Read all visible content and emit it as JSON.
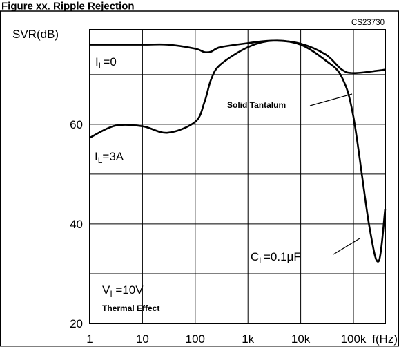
{
  "figure_caption": "Figure xx. Ripple Rejection",
  "chart_data": {
    "type": "line",
    "code": "CS23730",
    "ylabel": "SVR(dB)",
    "xlabel": "f(Hz)",
    "x_scale": "log",
    "xlim": [
      1,
      400000
    ],
    "ylim": [
      20,
      79
    ],
    "grid": true,
    "x_ticks": [
      {
        "value": 1,
        "label": "1"
      },
      {
        "value": 10,
        "label": "10"
      },
      {
        "value": 100,
        "label": "100"
      },
      {
        "value": 1000,
        "label": "1k"
      },
      {
        "value": 10000,
        "label": "10k"
      },
      {
        "value": 100000,
        "label": "100k"
      }
    ],
    "y_ticks": [
      {
        "value": 20,
        "label": "20"
      },
      {
        "value": 40,
        "label": "40"
      },
      {
        "value": 60,
        "label": "60"
      }
    ],
    "series": [
      {
        "name": "IL=0",
        "x": [
          1,
          10,
          30,
          100,
          150,
          200,
          300,
          1000,
          3000,
          10000,
          30000,
          60000,
          100000,
          300000,
          400000
        ],
        "y": [
          76,
          76,
          76,
          75.2,
          74.5,
          74.6,
          75.5,
          76.3,
          76.8,
          76.2,
          74,
          71,
          70.3,
          70.8,
          71
        ]
      },
      {
        "name": "IL=3A",
        "x": [
          1,
          3,
          10,
          30,
          100,
          150,
          200,
          300,
          1000,
          3000,
          10000,
          30000,
          60000,
          100000,
          200000,
          300000,
          400000
        ],
        "y": [
          57.3,
          59.7,
          59.6,
          58.3,
          60.5,
          64.5,
          69,
          72,
          75.5,
          76.8,
          76,
          72.8,
          69.5,
          61.5,
          39.5,
          32.5,
          43
        ]
      }
    ],
    "annotations": {
      "il0": {
        "prefix": "I",
        "sub": "L",
        "suffix": "=0"
      },
      "il3a": {
        "prefix": "I",
        "sub": "L",
        "suffix": "=3A"
      },
      "solid_tantalum": "Solid Tantalum",
      "cl": {
        "prefix": "C",
        "sub": "L",
        "suffix": "=0.1μF"
      },
      "vi": {
        "prefix": "V",
        "sub": "I",
        "suffix": " =10V"
      },
      "thermal": "Thermal Effect"
    }
  }
}
